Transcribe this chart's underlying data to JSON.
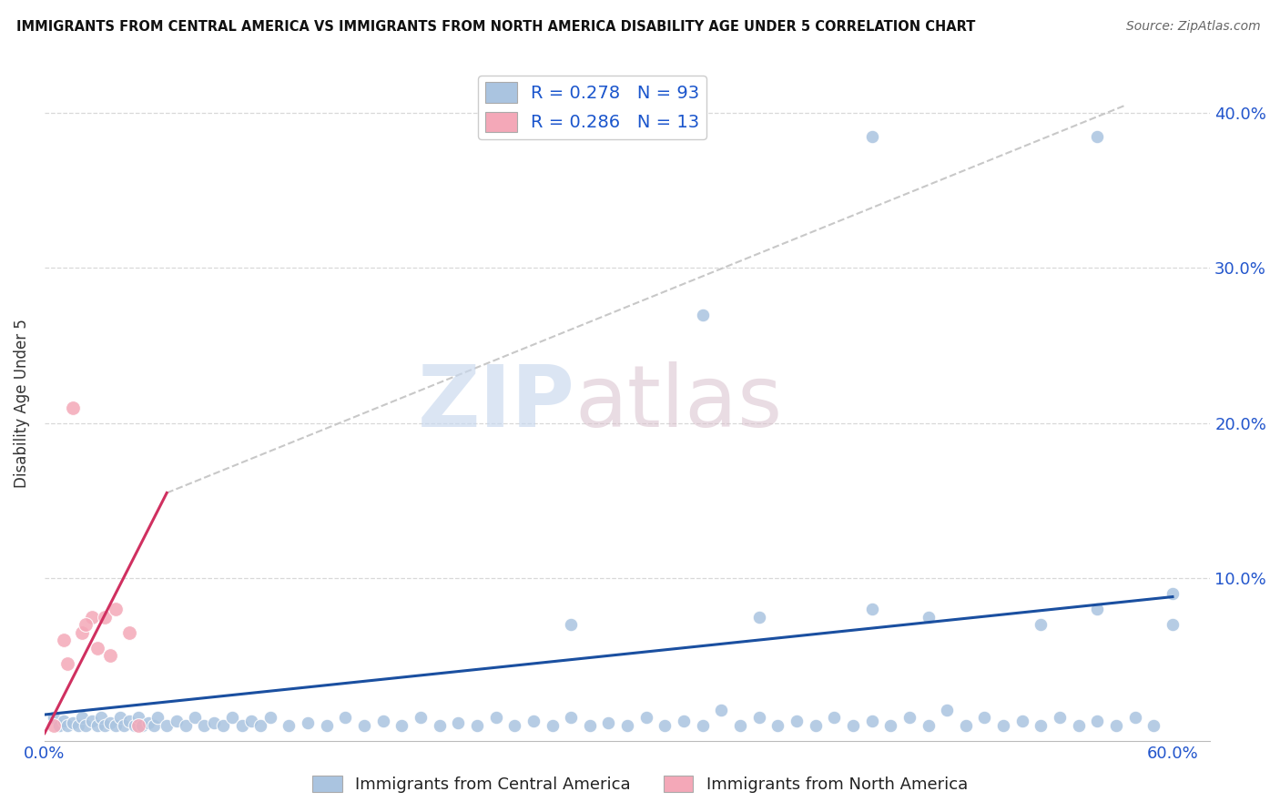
{
  "title": "IMMIGRANTS FROM CENTRAL AMERICA VS IMMIGRANTS FROM NORTH AMERICA DISABILITY AGE UNDER 5 CORRELATION CHART",
  "source": "Source: ZipAtlas.com",
  "ylabel": "Disability Age Under 5",
  "xlim": [
    0.0,
    0.62
  ],
  "ylim": [
    -0.005,
    0.43
  ],
  "R_blue": 0.278,
  "N_blue": 93,
  "R_pink": 0.286,
  "N_pink": 13,
  "blue_color": "#aac4e0",
  "pink_color": "#f4a8b8",
  "blue_line_color": "#1a4fa0",
  "pink_line_color": "#d03060",
  "dashed_line_color": "#c8c8c8",
  "background_color": "#ffffff",
  "grid_color": "#d8d8d8",
  "legend_label_blue": "Immigrants from Central America",
  "legend_label_pink": "Immigrants from North America",
  "blue_scatter_x": [
    0.005,
    0.008,
    0.01,
    0.012,
    0.015,
    0.018,
    0.02,
    0.022,
    0.025,
    0.028,
    0.03,
    0.032,
    0.035,
    0.038,
    0.04,
    0.042,
    0.045,
    0.048,
    0.05,
    0.052,
    0.055,
    0.058,
    0.06,
    0.065,
    0.07,
    0.075,
    0.08,
    0.085,
    0.09,
    0.095,
    0.1,
    0.105,
    0.11,
    0.115,
    0.12,
    0.13,
    0.14,
    0.15,
    0.16,
    0.17,
    0.18,
    0.19,
    0.2,
    0.21,
    0.22,
    0.23,
    0.24,
    0.25,
    0.26,
    0.27,
    0.28,
    0.29,
    0.3,
    0.31,
    0.32,
    0.33,
    0.34,
    0.35,
    0.36,
    0.37,
    0.38,
    0.39,
    0.4,
    0.41,
    0.42,
    0.43,
    0.44,
    0.45,
    0.46,
    0.47,
    0.48,
    0.49,
    0.5,
    0.51,
    0.52,
    0.53,
    0.54,
    0.55,
    0.56,
    0.57,
    0.58,
    0.59,
    0.6,
    0.44,
    0.56,
    0.38,
    0.44,
    0.56,
    0.6,
    0.53,
    0.47,
    0.35,
    0.28
  ],
  "blue_scatter_y": [
    0.01,
    0.005,
    0.008,
    0.005,
    0.007,
    0.005,
    0.01,
    0.005,
    0.008,
    0.005,
    0.01,
    0.005,
    0.007,
    0.005,
    0.01,
    0.005,
    0.008,
    0.005,
    0.01,
    0.005,
    0.007,
    0.005,
    0.01,
    0.005,
    0.008,
    0.005,
    0.01,
    0.005,
    0.007,
    0.005,
    0.01,
    0.005,
    0.008,
    0.005,
    0.01,
    0.005,
    0.007,
    0.005,
    0.01,
    0.005,
    0.008,
    0.005,
    0.01,
    0.005,
    0.007,
    0.005,
    0.01,
    0.005,
    0.008,
    0.005,
    0.01,
    0.005,
    0.007,
    0.005,
    0.01,
    0.005,
    0.008,
    0.005,
    0.015,
    0.005,
    0.01,
    0.005,
    0.008,
    0.005,
    0.01,
    0.005,
    0.008,
    0.005,
    0.01,
    0.005,
    0.015,
    0.005,
    0.01,
    0.005,
    0.008,
    0.005,
    0.01,
    0.005,
    0.008,
    0.005,
    0.01,
    0.005,
    0.09,
    0.08,
    0.08,
    0.075,
    0.385,
    0.385,
    0.07,
    0.07,
    0.075,
    0.27,
    0.07
  ],
  "pink_scatter_x": [
    0.005,
    0.01,
    0.015,
    0.02,
    0.025,
    0.028,
    0.032,
    0.038,
    0.045,
    0.012,
    0.022,
    0.035,
    0.05
  ],
  "pink_scatter_y": [
    0.005,
    0.06,
    0.21,
    0.065,
    0.075,
    0.055,
    0.075,
    0.08,
    0.065,
    0.045,
    0.07,
    0.05,
    0.005
  ],
  "pink_line_x": [
    0.0,
    0.065
  ],
  "pink_line_y": [
    0.0,
    0.155
  ],
  "dashed_line_x": [
    0.065,
    0.575
  ],
  "dashed_line_y": [
    0.155,
    0.405
  ],
  "blue_line_x": [
    0.0,
    0.6
  ],
  "blue_line_y": [
    0.012,
    0.088
  ]
}
